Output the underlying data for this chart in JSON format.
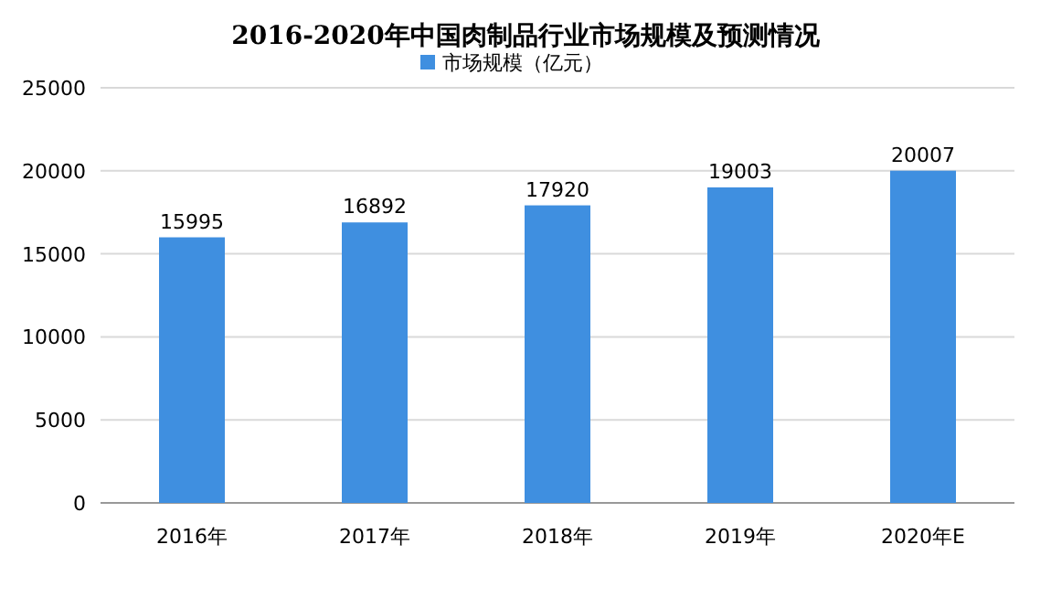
{
  "chart_data": {
    "type": "bar",
    "title": "2016-2020年中国肉制品行业市场规模及预测情况",
    "categories": [
      "2016年",
      "2017年",
      "2018年",
      "2019年",
      "2020年E"
    ],
    "series": [
      {
        "name": "市场规模（亿元）",
        "color": "#3f8fe0",
        "values": [
          15995,
          16892,
          17920,
          19003,
          20007
        ]
      }
    ],
    "ylim": [
      0,
      25000
    ],
    "yticks": [
      0,
      5000,
      10000,
      15000,
      20000,
      25000
    ],
    "grid": "y",
    "legend": "top",
    "data_labels": true
  }
}
